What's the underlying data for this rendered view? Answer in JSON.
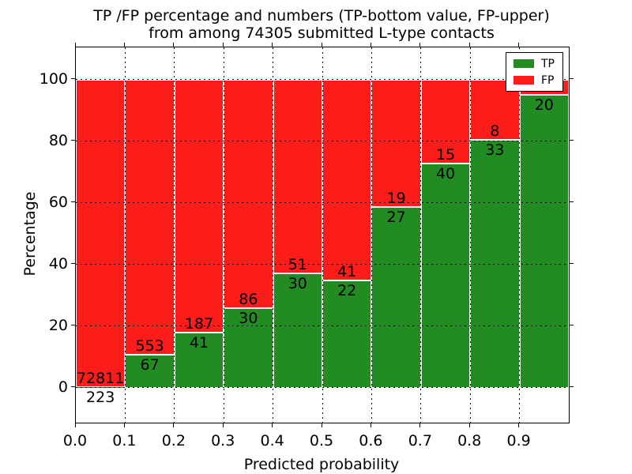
{
  "figure": {
    "title_line1": "TP /FP percentage and numbers (TP-bottom value, FP-upper)",
    "title_line2": "from among 74305 submitted L-type contacts"
  },
  "chart_data": {
    "type": "bar",
    "stacked": true,
    "orientation": "vertical",
    "title": "TP /FP percentage and numbers (TP-bottom value, FP-upper)\nfrom among 74305 submitted L-type contacts",
    "xlabel": "Predicted probability",
    "ylabel": "Percentage",
    "total_contacts": 74305,
    "xlim": [
      0.0,
      1.0
    ],
    "ylim": [
      -11.3,
      110.5
    ],
    "x_tick_labels": [
      "0.0",
      "0.1",
      "0.2",
      "0.3",
      "0.4",
      "0.5",
      "0.6",
      "0.7",
      "0.8",
      "0.9"
    ],
    "y_tick_values": [
      0,
      20,
      40,
      60,
      80,
      100
    ],
    "grid": {
      "style": "dotted",
      "color": "#000000"
    },
    "colors": {
      "tp": "#228b22",
      "fp": "#fc1c19",
      "bar_edge": "#ffffff"
    },
    "legend": {
      "position": "upper-right",
      "entries": [
        {
          "label": "TP",
          "color_key": "tp"
        },
        {
          "label": "FP",
          "color_key": "fp"
        }
      ]
    },
    "bins": [
      {
        "range": [
          0.0,
          0.1
        ],
        "tp_pct": 0.31,
        "tp_label": "223",
        "fp_label": "72811"
      },
      {
        "range": [
          0.1,
          0.2
        ],
        "tp_pct": 10.81,
        "tp_label": "67",
        "fp_label": "553"
      },
      {
        "range": [
          0.2,
          0.3
        ],
        "tp_pct": 17.98,
        "tp_label": "41",
        "fp_label": "187"
      },
      {
        "range": [
          0.3,
          0.4
        ],
        "tp_pct": 25.86,
        "tp_label": "30",
        "fp_label": "86"
      },
      {
        "range": [
          0.4,
          0.5
        ],
        "tp_pct": 37.04,
        "tp_label": "30",
        "fp_label": "51"
      },
      {
        "range": [
          0.5,
          0.6
        ],
        "tp_pct": 34.92,
        "tp_label": "22",
        "fp_label": "41"
      },
      {
        "range": [
          0.6,
          0.7
        ],
        "tp_pct": 58.7,
        "tp_label": "27",
        "fp_label": "19"
      },
      {
        "range": [
          0.7,
          0.8
        ],
        "tp_pct": 72.73,
        "tp_label": "40",
        "fp_label": "15"
      },
      {
        "range": [
          0.8,
          0.9
        ],
        "tp_pct": 80.49,
        "tp_label": "33",
        "fp_label": "8"
      },
      {
        "range": [
          0.9,
          1.0
        ],
        "tp_pct": 95.24,
        "tp_label": "20",
        "fp_label": ""
      }
    ]
  }
}
